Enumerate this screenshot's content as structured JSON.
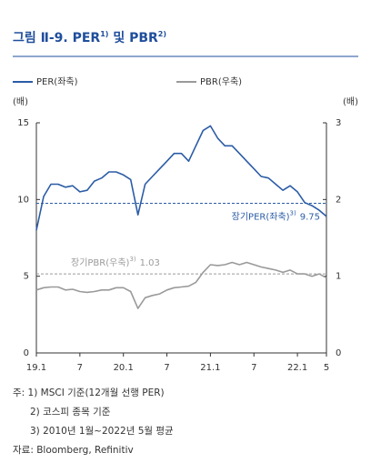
{
  "chart_data": {
    "type": "line",
    "title_parts": [
      "그림 Ⅱ-9. PER",
      "1)",
      " 및 PBR",
      "2)"
    ],
    "y_unit": "(배)",
    "y2_unit": "(배)",
    "categories": [
      "19.1",
      null,
      null,
      null,
      null,
      null,
      "7",
      null,
      null,
      null,
      null,
      null,
      "20.1",
      null,
      null,
      null,
      null,
      null,
      "7",
      null,
      null,
      null,
      null,
      null,
      "21.1",
      null,
      null,
      null,
      null,
      null,
      "7",
      null,
      null,
      null,
      null,
      null,
      "22.1",
      null,
      null,
      null,
      "5"
    ],
    "series": [
      {
        "name": "PER(좌축)",
        "color": "#2b5ca6",
        "axis": "y",
        "values": [
          8.0,
          10.2,
          11.0,
          11.0,
          10.8,
          10.9,
          10.5,
          10.6,
          11.2,
          11.4,
          11.8,
          11.8,
          11.6,
          11.3,
          9.0,
          11.0,
          11.5,
          12.0,
          12.5,
          13.0,
          13.0,
          12.5,
          13.5,
          14.5,
          14.8,
          14.0,
          13.5,
          13.5,
          13.0,
          12.5,
          12.0,
          11.5,
          11.4,
          11.0,
          10.6,
          10.9,
          10.5,
          9.8,
          9.6,
          9.3,
          8.9
        ]
      },
      {
        "name": "PBR(우축)",
        "color": "#9a9a9a",
        "axis": "y2",
        "values": [
          0.82,
          0.85,
          0.86,
          0.86,
          0.82,
          0.83,
          0.8,
          0.79,
          0.8,
          0.82,
          0.82,
          0.85,
          0.85,
          0.8,
          0.58,
          0.72,
          0.75,
          0.77,
          0.82,
          0.85,
          0.86,
          0.87,
          0.92,
          1.05,
          1.15,
          1.14,
          1.15,
          1.18,
          1.15,
          1.18,
          1.15,
          1.12,
          1.1,
          1.08,
          1.05,
          1.08,
          1.03,
          1.03,
          1.0,
          1.03,
          0.98
        ]
      }
    ],
    "reference_lines": [
      {
        "label": "장기PER(좌축)",
        "note": "3)",
        "value": 9.75,
        "axis": "y",
        "color": "#2b5ca6"
      },
      {
        "label": "장기PBR(우축)",
        "note": "3)",
        "value": 1.03,
        "axis": "y2",
        "color": "#9a9a9a"
      }
    ],
    "ylim": [
      0,
      15
    ],
    "yticks": [
      0,
      5,
      10,
      15
    ],
    "y2lim": [
      0,
      3
    ],
    "y2ticks": [
      0,
      1,
      2,
      3
    ],
    "notes": [
      "주: 1) MSCI 기준(12개월 선행 PER)",
      "2) 코스피 종목 기준",
      "3) 2010년 1월~2022년 5월 평균",
      "자료: Bloomberg, Refinitiv"
    ]
  }
}
